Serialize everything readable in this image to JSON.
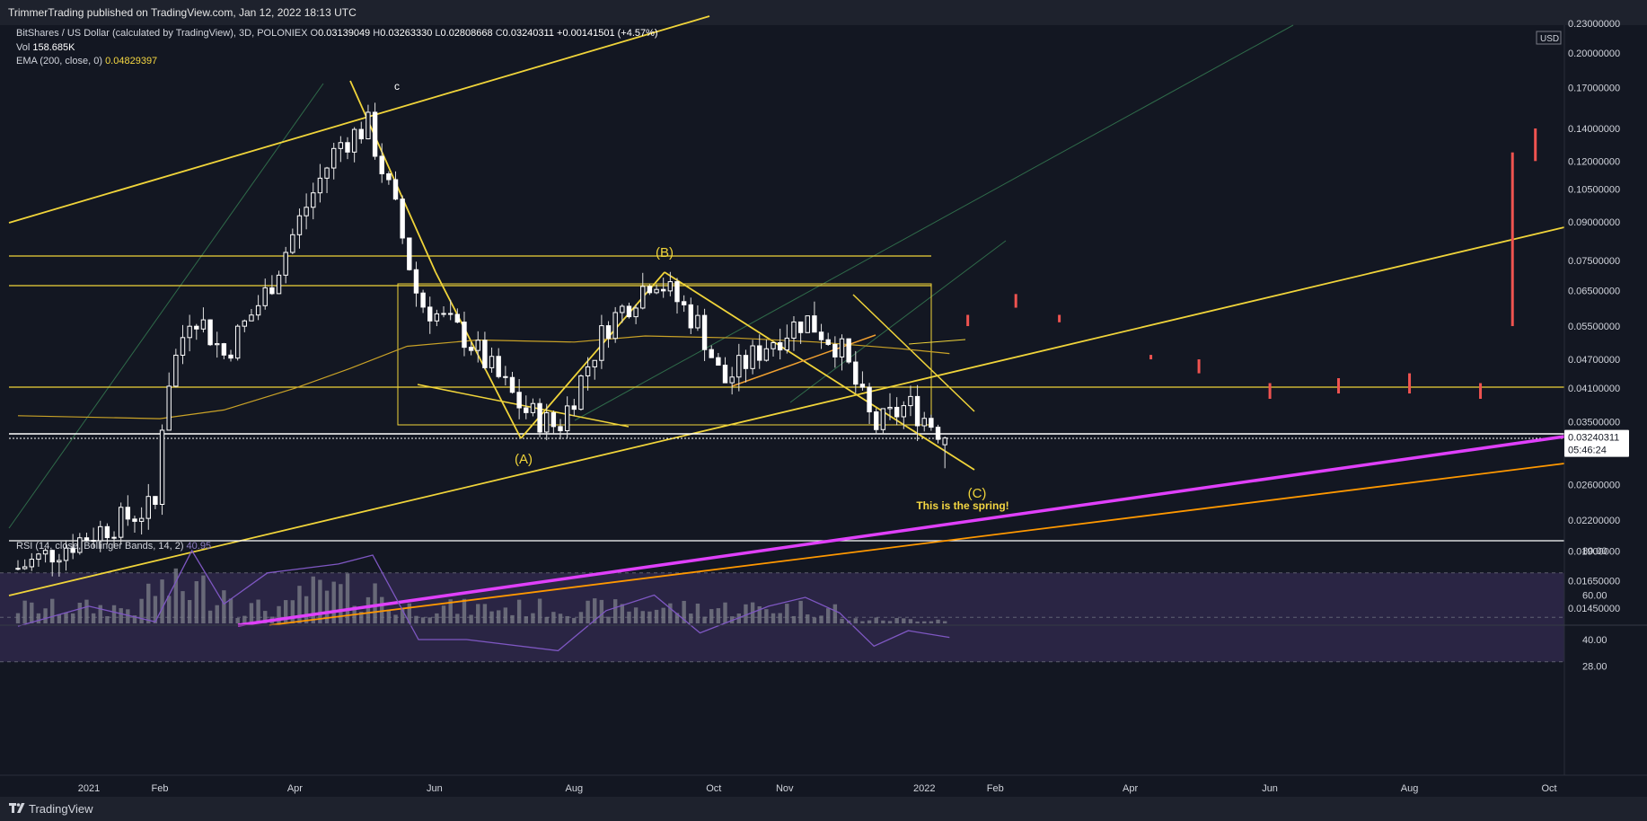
{
  "header": {
    "published": "TrimmerTrading published on TradingView.com, Jan 12, 2022 18:13 UTC"
  },
  "legend": {
    "symbol": "BitShares / US Dollar (calculated by TradingView), 3D, POLONIEX",
    "o_label": "O",
    "o": "0.03139049",
    "h_label": "H",
    "h": "0.03263330",
    "l_label": "L",
    "l": "0.02808668",
    "c_label": "C",
    "c": "0.03240311",
    "change": "+0.00141501 (+4.57%)",
    "vol_label": "Vol",
    "vol": "158.685K",
    "ema_label": "EMA (200, close, 0)",
    "ema": "0.04829397",
    "rsi_label": "RSI (14, close, Bollinger Bands, 14, 2)",
    "rsi": "40.95"
  },
  "footer": {
    "brand": "TradingView"
  },
  "chart_data": [
    {
      "type": "candlestick",
      "title": "BitShares / US Dollar (calculated by TradingView), 3D, POLONIEX",
      "scale": "log",
      "currency": "USD",
      "y_ticks": [
        "0.23000000",
        "0.20000000",
        "0.17000000",
        "0.14000000",
        "0.12000000",
        "0.10500000",
        "0.09000000",
        "0.07500000",
        "0.06500000",
        "0.05500000",
        "0.04700000",
        "0.04100000",
        "0.03500000",
        "0.02600000",
        "0.02200000",
        "0.01900000",
        "0.01650000",
        "0.01450000"
      ],
      "x_ticks": [
        "2021",
        "Feb",
        "Apr",
        "Jun",
        "Aug",
        "Oct",
        "Nov",
        "2022",
        "Feb",
        "Apr",
        "Jun",
        "Aug",
        "Oct"
      ],
      "last_price": "0.03240311",
      "countdown": "05:46:24",
      "ohlc_last": {
        "open": 0.03139049,
        "high": 0.0326333,
        "low": 0.02808668,
        "close": 0.03240311
      },
      "ema200_last": 0.04829397,
      "volume_last": "158.685K",
      "approx_close_path": [
        {
          "date": "2020-12-01",
          "close": 0.0175
        },
        {
          "date": "2021-01-01",
          "close": 0.0205
        },
        {
          "date": "2021-01-20",
          "close": 0.0225
        },
        {
          "date": "2021-01-30",
          "close": 0.0235
        },
        {
          "date": "2021-02-03",
          "close": 0.04
        },
        {
          "date": "2021-02-15",
          "close": 0.06
        },
        {
          "date": "2021-03-01",
          "close": 0.048
        },
        {
          "date": "2021-03-20",
          "close": 0.065
        },
        {
          "date": "2021-04-05",
          "close": 0.095
        },
        {
          "date": "2021-04-20",
          "close": 0.13
        },
        {
          "date": "2021-05-03",
          "close": 0.142
        },
        {
          "date": "2021-05-15",
          "close": 0.095
        },
        {
          "date": "2021-05-25",
          "close": 0.062
        },
        {
          "date": "2021-06-15",
          "close": 0.052
        },
        {
          "date": "2021-07-10",
          "close": 0.037
        },
        {
          "date": "2021-07-25",
          "close": 0.034
        },
        {
          "date": "2021-08-15",
          "close": 0.055
        },
        {
          "date": "2021-09-05",
          "close": 0.07
        },
        {
          "date": "2021-09-25",
          "close": 0.055
        },
        {
          "date": "2021-10-05",
          "close": 0.042
        },
        {
          "date": "2021-10-25",
          "close": 0.051
        },
        {
          "date": "2021-11-10",
          "close": 0.057
        },
        {
          "date": "2021-11-25",
          "close": 0.05
        },
        {
          "date": "2021-12-10",
          "close": 0.034
        },
        {
          "date": "2021-12-25",
          "close": 0.038
        },
        {
          "date": "2022-01-12",
          "close": 0.0324
        }
      ],
      "projection_bars": [
        {
          "date": "2022-01-20",
          "low": 0.055,
          "high": 0.058
        },
        {
          "date": "2022-02-10",
          "low": 0.06,
          "high": 0.064
        },
        {
          "date": "2022-03-01",
          "low": 0.056,
          "high": 0.058
        },
        {
          "date": "2022-04-10",
          "low": 0.047,
          "high": 0.048
        },
        {
          "date": "2022-05-01",
          "low": 0.044,
          "high": 0.047
        },
        {
          "date": "2022-06-01",
          "low": 0.039,
          "high": 0.042
        },
        {
          "date": "2022-07-01",
          "low": 0.04,
          "high": 0.043
        },
        {
          "date": "2022-08-01",
          "low": 0.04,
          "high": 0.044
        },
        {
          "date": "2022-09-01",
          "low": 0.039,
          "high": 0.042
        },
        {
          "date": "2022-09-15",
          "low": 0.055,
          "high": 0.125
        },
        {
          "date": "2022-09-25",
          "low": 0.12,
          "high": 0.14
        }
      ],
      "annotations": [
        "(A)",
        "(B)",
        "(C)",
        "c",
        "This is the spring!"
      ]
    },
    {
      "type": "line",
      "title": "RSI (14, close, Bollinger Bands, 14, 2)",
      "last_value": 40.95,
      "y_ticks": [
        "80.00",
        "60.00",
        "40.00",
        "28.00"
      ],
      "bands": {
        "upper": 70,
        "middle": 50,
        "lower": 30
      },
      "approx_values": [
        {
          "date": "2020-12-01",
          "value": 46
        },
        {
          "date": "2021-01-01",
          "value": 55
        },
        {
          "date": "2021-01-30",
          "value": 48
        },
        {
          "date": "2021-02-15",
          "value": 80
        },
        {
          "date": "2021-03-01",
          "value": 56
        },
        {
          "date": "2021-03-20",
          "value": 70
        },
        {
          "date": "2021-04-20",
          "value": 74
        },
        {
          "date": "2021-05-05",
          "value": 78
        },
        {
          "date": "2021-05-25",
          "value": 40
        },
        {
          "date": "2021-06-15",
          "value": 40
        },
        {
          "date": "2021-07-25",
          "value": 35
        },
        {
          "date": "2021-08-15",
          "value": 53
        },
        {
          "date": "2021-09-05",
          "value": 60
        },
        {
          "date": "2021-09-25",
          "value": 43
        },
        {
          "date": "2021-10-25",
          "value": 55
        },
        {
          "date": "2021-11-10",
          "value": 59
        },
        {
          "date": "2021-11-25",
          "value": 52
        },
        {
          "date": "2021-12-10",
          "value": 37
        },
        {
          "date": "2021-12-25",
          "value": 44
        },
        {
          "date": "2022-01-12",
          "value": 40.95
        }
      ]
    }
  ]
}
